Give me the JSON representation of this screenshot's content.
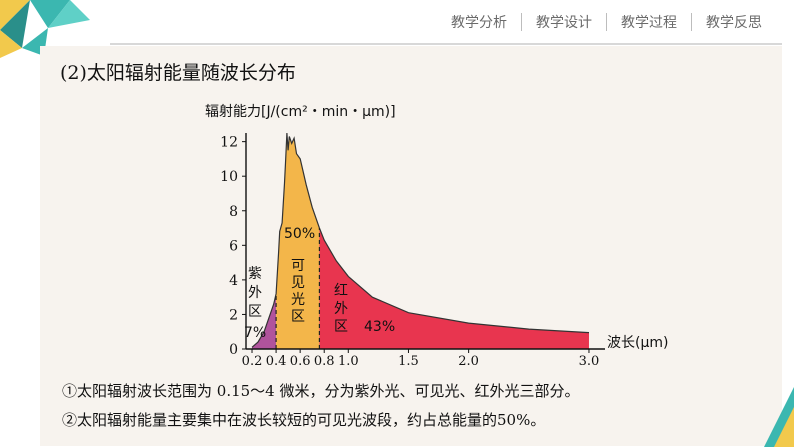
{
  "nav": {
    "items": [
      "教学分析",
      "教学设计",
      "教学过程",
      "教学反思"
    ]
  },
  "section_title": "(2)太阳辐射能量随波长分布",
  "notes": [
    "①太阳辐射波长范围为 0.15～4 微米，分为紫外光、可见光、红外光三部分。",
    "②太阳辐射能量主要集中在波长较短的可见光波段，约占总能量的50%。"
  ],
  "colors": {
    "uv": "#b0539c",
    "visible": "#f3b64a",
    "infrared": "#e8354f",
    "accent_teal": "#3bb7b0",
    "accent_yellow": "#f2c94c"
  },
  "chart_data": {
    "type": "area",
    "ylabel": "辐射能力[J/(cm²・min・μm)]",
    "xlabel": "波长(μm)",
    "xlim": [
      0.15,
      3.1
    ],
    "ylim": [
      0,
      12.5
    ],
    "yticks": [
      0,
      2,
      4,
      6,
      8,
      10,
      12
    ],
    "xticks": [
      "0.2",
      "0.4",
      "0.6",
      "0.8",
      "1.0",
      "1.5",
      "2.0",
      "3.0"
    ],
    "xtick_values": [
      0.2,
      0.4,
      0.6,
      0.8,
      1.0,
      1.5,
      2.0,
      3.0
    ],
    "curve": [
      [
        0.2,
        0.1
      ],
      [
        0.25,
        0.4
      ],
      [
        0.3,
        1.0
      ],
      [
        0.35,
        2.0
      ],
      [
        0.38,
        2.6
      ],
      [
        0.4,
        3.2
      ],
      [
        0.42,
        5.5
      ],
      [
        0.43,
        6.8
      ],
      [
        0.45,
        7.3
      ],
      [
        0.47,
        9.6
      ],
      [
        0.48,
        11.0
      ],
      [
        0.49,
        12.5
      ],
      [
        0.5,
        11.5
      ],
      [
        0.51,
        12.3
      ],
      [
        0.53,
        11.9
      ],
      [
        0.55,
        12.2
      ],
      [
        0.57,
        11.3
      ],
      [
        0.6,
        11.0
      ],
      [
        0.65,
        9.5
      ],
      [
        0.7,
        8.2
      ],
      [
        0.76,
        7.0
      ],
      [
        0.8,
        6.3
      ],
      [
        0.9,
        5.1
      ],
      [
        1.0,
        4.2
      ],
      [
        1.2,
        3.0
      ],
      [
        1.5,
        2.1
      ],
      [
        2.0,
        1.5
      ],
      [
        2.5,
        1.15
      ],
      [
        3.0,
        0.95
      ]
    ],
    "regions": [
      {
        "name": "紫外区",
        "from": 0.2,
        "to": 0.4,
        "percent": "7%"
      },
      {
        "name": "可见光区",
        "from": 0.4,
        "to": 0.76,
        "percent": "50%"
      },
      {
        "name": "红外区",
        "from": 0.76,
        "to": 3.0,
        "percent": "43%"
      }
    ],
    "region_labels": {
      "uv": [
        "紫",
        "外",
        "区"
      ],
      "visible": [
        "可",
        "见",
        "光",
        "区"
      ],
      "infrared": [
        "红",
        "外",
        "区"
      ]
    }
  }
}
